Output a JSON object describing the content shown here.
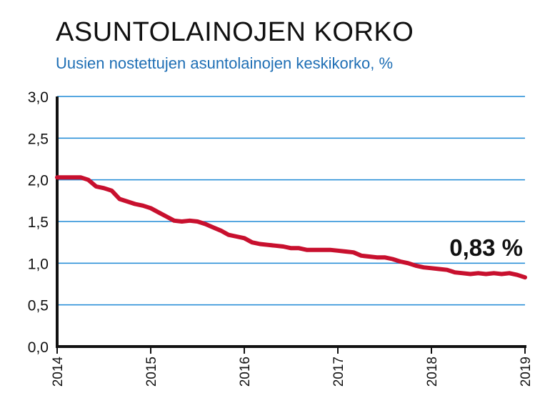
{
  "chart_data": {
    "type": "line",
    "title": "ASUNTOLAINOJEN KORKO",
    "subtitle": "Uusien nostettujen asuntolainojen keskikorko, %",
    "xlabel": "",
    "ylabel": "",
    "ylim": [
      0,
      3
    ],
    "xlim": [
      2014,
      2019
    ],
    "grid": true,
    "y_ticks": [
      "0,0",
      "0,5",
      "1,0",
      "1,5",
      "2,0",
      "2,5",
      "3,0"
    ],
    "x_ticks": [
      "2014",
      "2015",
      "2016",
      "2017",
      "2018",
      "2019"
    ],
    "annotation": "0,83 %",
    "line_color": "#c8102e",
    "grid_color": "#1f8ad6",
    "series": [
      {
        "x": [
          2014.0,
          2014.083,
          2014.167,
          2014.25,
          2014.333,
          2014.417,
          2014.5,
          2014.583,
          2014.667,
          2014.75,
          2014.833,
          2014.917,
          2015.0,
          2015.083,
          2015.167,
          2015.25,
          2015.333,
          2015.417,
          2015.5,
          2015.583,
          2015.667,
          2015.75,
          2015.833,
          2015.917,
          2016.0,
          2016.083,
          2016.167,
          2016.25,
          2016.333,
          2016.417,
          2016.5,
          2016.583,
          2016.667,
          2016.75,
          2016.833,
          2016.917,
          2017.0,
          2017.083,
          2017.167,
          2017.25,
          2017.333,
          2017.417,
          2017.5,
          2017.583,
          2017.667,
          2017.75,
          2017.833,
          2017.917,
          2018.0,
          2018.083,
          2018.167,
          2018.25,
          2018.333,
          2018.417,
          2018.5,
          2018.583,
          2018.667,
          2018.75,
          2018.833,
          2018.917,
          2019.0
        ],
        "y": [
          2.03,
          2.03,
          2.03,
          2.03,
          2.0,
          1.92,
          1.9,
          1.87,
          1.77,
          1.74,
          1.71,
          1.69,
          1.66,
          1.61,
          1.56,
          1.51,
          1.5,
          1.51,
          1.5,
          1.47,
          1.43,
          1.39,
          1.34,
          1.32,
          1.3,
          1.25,
          1.23,
          1.22,
          1.21,
          1.2,
          1.18,
          1.18,
          1.16,
          1.16,
          1.16,
          1.16,
          1.15,
          1.14,
          1.13,
          1.09,
          1.08,
          1.07,
          1.07,
          1.05,
          1.02,
          1.0,
          0.97,
          0.95,
          0.94,
          0.93,
          0.92,
          0.89,
          0.88,
          0.87,
          0.88,
          0.87,
          0.88,
          0.87,
          0.88,
          0.86,
          0.83
        ]
      }
    ]
  }
}
